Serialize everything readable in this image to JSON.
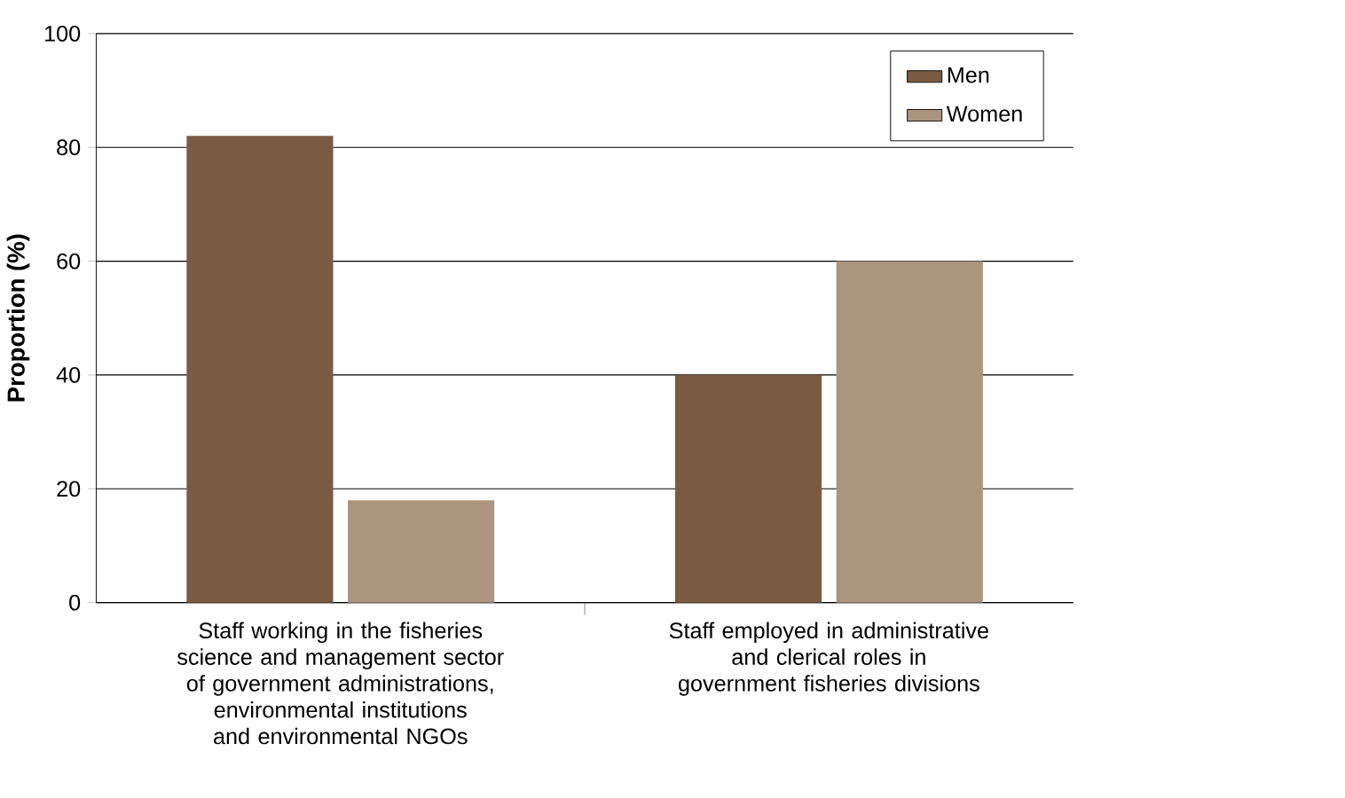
{
  "chart_data": {
    "type": "bar",
    "ylabel": "Proportion (%)",
    "categories": [
      "Staff working in the fisheries science and management sector of government administrations, environmental institutions and environmental NGOs",
      "Staff employed in administrative and clerical roles in government fisheries divisions"
    ],
    "series": [
      {
        "name": "Men",
        "color": "#7a5a41",
        "values": [
          82,
          40
        ]
      },
      {
        "name": "Women",
        "color": "#ab9580",
        "values": [
          18,
          60
        ]
      }
    ],
    "ylim": [
      0,
      100
    ],
    "yticks": [
      0,
      20,
      40,
      60,
      80,
      100
    ],
    "grid": "y",
    "legend": "top right"
  }
}
